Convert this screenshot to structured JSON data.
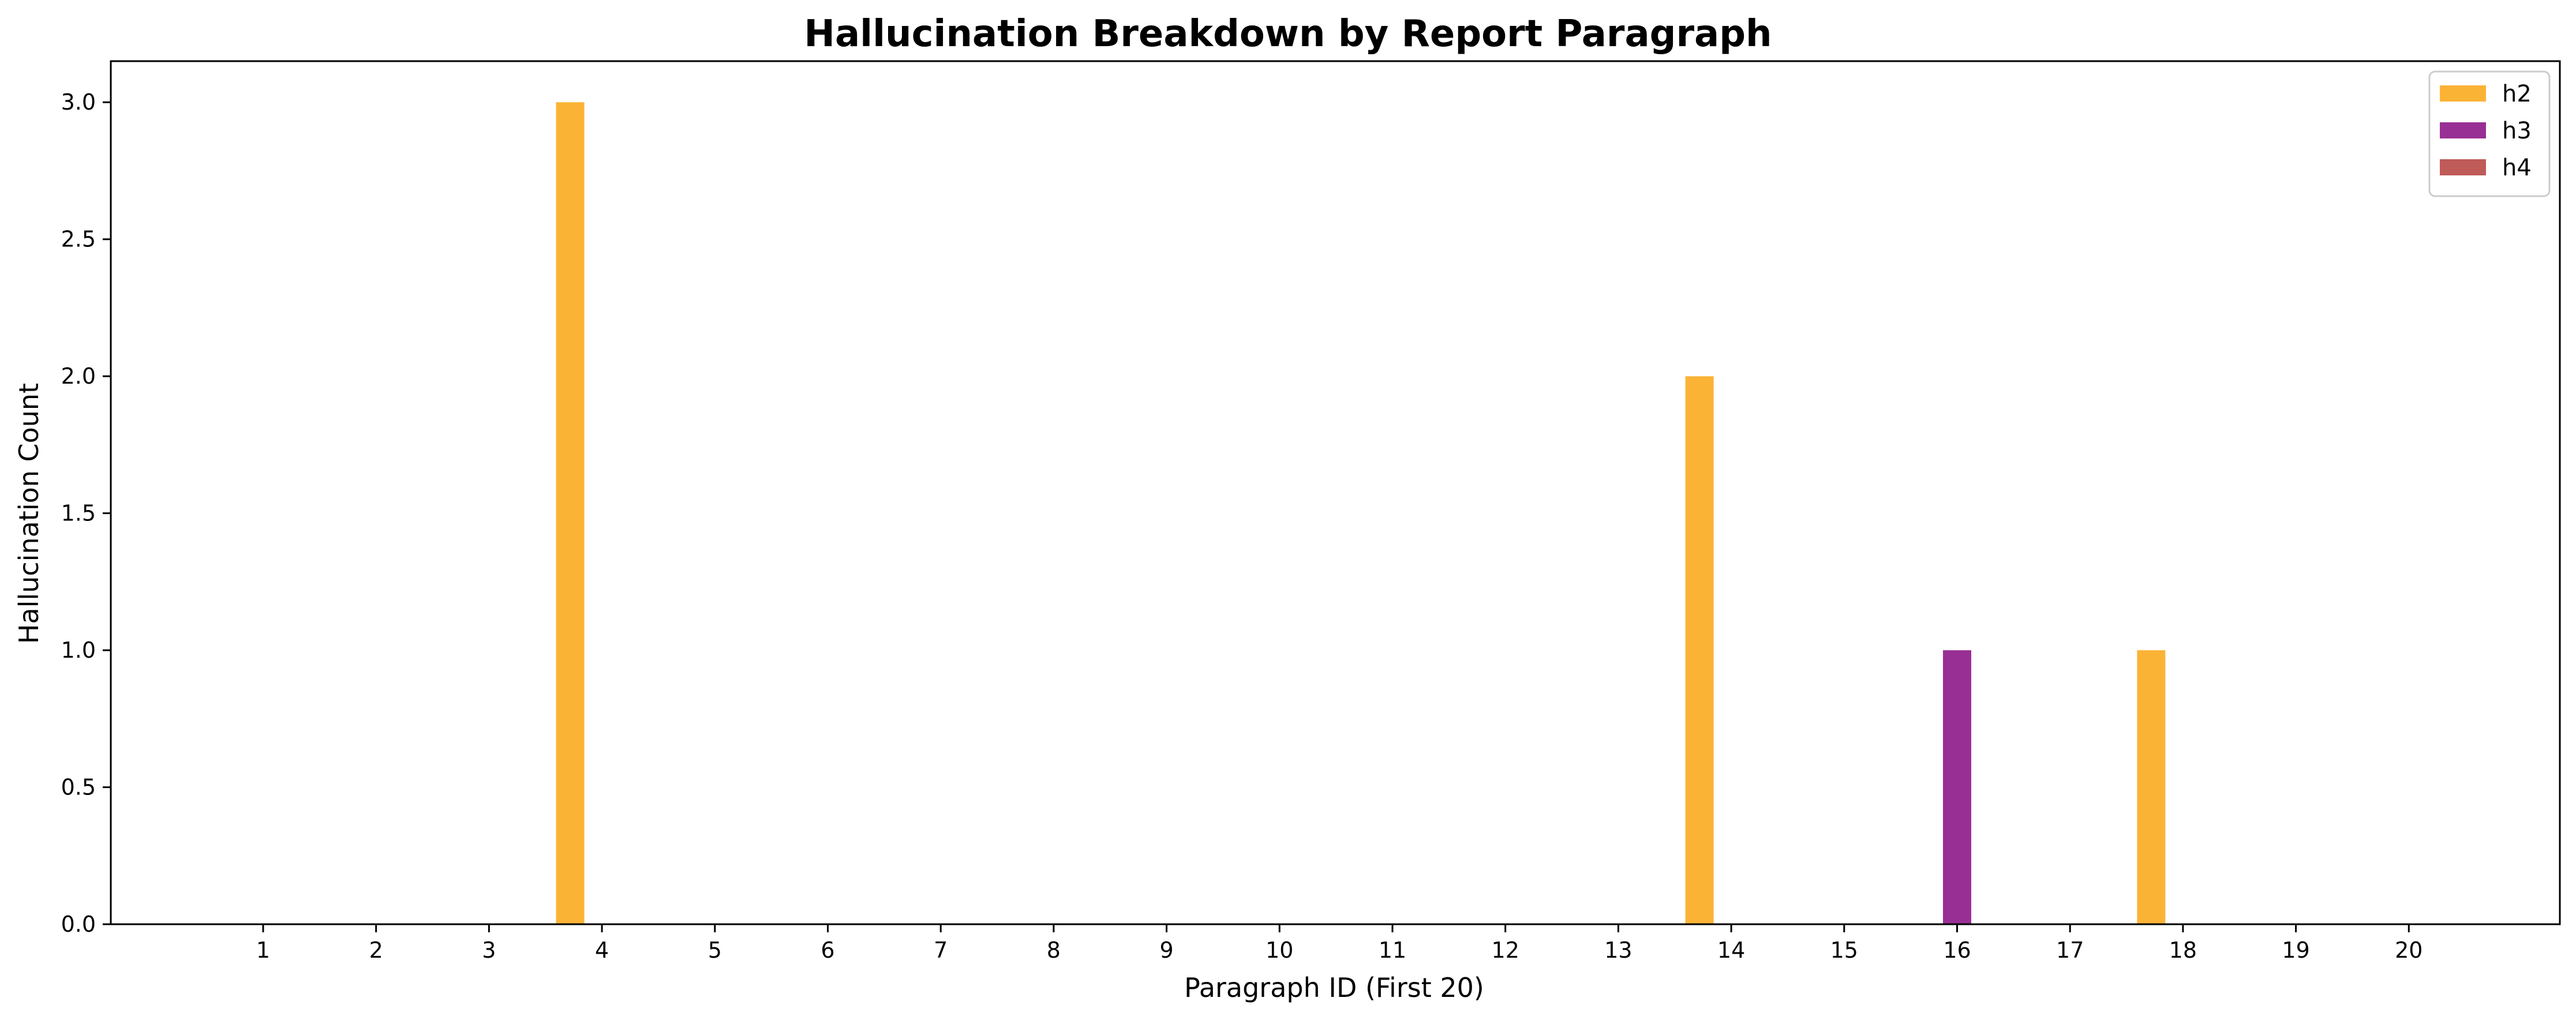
{
  "chart_data": {
    "type": "bar",
    "title": "Hallucination Breakdown by Report Paragraph",
    "xlabel": "Paragraph ID (First 20)",
    "ylabel": "Hallucination Count",
    "categories": [
      "1",
      "2",
      "3",
      "4",
      "5",
      "6",
      "7",
      "8",
      "9",
      "10",
      "11",
      "12",
      "13",
      "14",
      "15",
      "16",
      "17",
      "18",
      "19",
      "20"
    ],
    "series": [
      {
        "name": "h2",
        "color": "#FBB336",
        "values": [
          0,
          0,
          0,
          3,
          0,
          0,
          0,
          0,
          0,
          0,
          0,
          0,
          0,
          2,
          0,
          0,
          0,
          1,
          0,
          0
        ]
      },
      {
        "name": "h3",
        "color": "#982F95",
        "values": [
          0,
          0,
          0,
          0,
          0,
          0,
          0,
          0,
          0,
          0,
          0,
          0,
          0,
          0,
          0,
          1,
          0,
          0,
          0,
          0
        ]
      },
      {
        "name": "h4",
        "color": "#BF5B58",
        "values": [
          0,
          0,
          0,
          0,
          0,
          0,
          0,
          0,
          0,
          0,
          0,
          0,
          0,
          0,
          0,
          0,
          0,
          0,
          0,
          0
        ]
      }
    ],
    "ylim": [
      0,
      3.15
    ],
    "yticks": [
      "0.0",
      "0.5",
      "1.0",
      "1.5",
      "2.0",
      "2.5",
      "3.0"
    ],
    "legend_position": "top-right",
    "grid": false
  }
}
